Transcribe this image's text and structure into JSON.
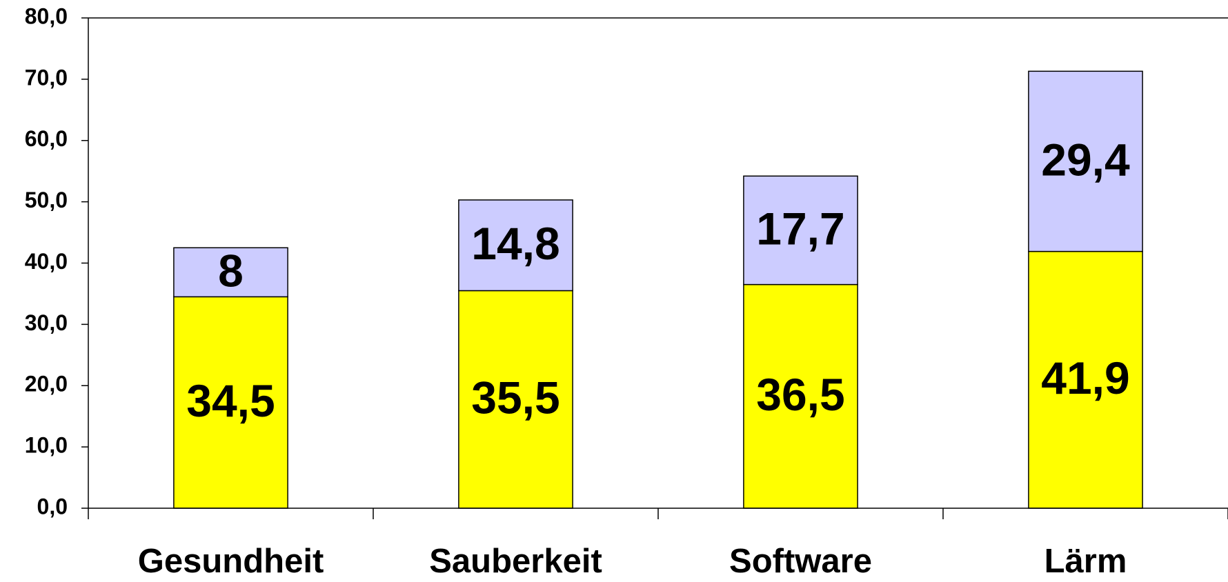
{
  "chart_data": {
    "type": "stacked_bar",
    "categories": [
      "Gesundheit",
      "Sauberkeit",
      "Software",
      "Lärm"
    ],
    "series": [
      {
        "color": "#ffff00",
        "values": [
          34.5,
          35.5,
          36.5,
          41.9
        ],
        "value_labels": [
          "34,5",
          "35,5",
          "36,5",
          "41,9"
        ]
      },
      {
        "color": "#ccccff",
        "values": [
          8,
          14.8,
          17.7,
          29.4
        ],
        "value_labels": [
          "8",
          "14,8",
          "17,7",
          "29,4"
        ]
      }
    ],
    "ylim": [
      0,
      80
    ],
    "yticks": [
      {
        "value": 0,
        "label": "0,0"
      },
      {
        "value": 10,
        "label": "10,0"
      },
      {
        "value": 20,
        "label": "20,0"
      },
      {
        "value": 30,
        "label": "30,0"
      },
      {
        "value": 40,
        "label": "40,0"
      },
      {
        "value": 50,
        "label": "50,0"
      },
      {
        "value": 60,
        "label": "60,0"
      },
      {
        "value": 70,
        "label": "70,0"
      },
      {
        "value": 80,
        "label": "80,0"
      }
    ],
    "grid": false
  }
}
